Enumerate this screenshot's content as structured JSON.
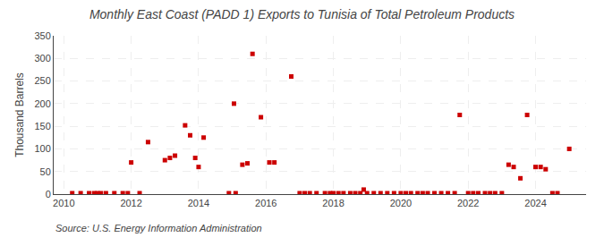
{
  "chart_data": {
    "type": "scatter",
    "title": "Monthly East Coast (PADD 1) Exports to Tunisia of Total Petroleum Products",
    "ylabel": "Thousand Barrels",
    "annotations": [
      "Source: U.S. Energy Information Administration"
    ],
    "color": "#cc0000",
    "marker": "square",
    "grid": true,
    "xlim": [
      2009.7,
      2025.5
    ],
    "xticks": [
      2010,
      2012,
      2014,
      2016,
      2018,
      2020,
      2022,
      2024
    ],
    "ylim": [
      0,
      350
    ],
    "yticks": [
      0,
      50,
      100,
      150,
      200,
      250,
      300,
      350
    ],
    "x": [
      2010.25,
      2010.5,
      2010.75,
      2010.9,
      2011.0,
      2011.1,
      2011.25,
      2011.5,
      2011.75,
      2011.9,
      2012.0,
      2012.25,
      2012.5,
      2013.0,
      2013.15,
      2013.3,
      2013.6,
      2013.75,
      2013.9,
      2014.0,
      2014.15,
      2014.9,
      2015.05,
      2015.1,
      2015.3,
      2015.45,
      2015.6,
      2015.85,
      2016.1,
      2016.25,
      2016.75,
      2017.0,
      2017.15,
      2017.3,
      2017.5,
      2017.75,
      2017.9,
      2018.0,
      2018.15,
      2018.3,
      2018.5,
      2018.65,
      2018.8,
      2018.9,
      2019.0,
      2019.2,
      2019.4,
      2019.6,
      2019.8,
      2020.0,
      2020.15,
      2020.3,
      2020.5,
      2020.65,
      2020.8,
      2021.0,
      2021.2,
      2021.4,
      2021.6,
      2021.75,
      2022.0,
      2022.15,
      2022.3,
      2022.5,
      2022.65,
      2022.8,
      2023.0,
      2023.2,
      2023.35,
      2023.55,
      2023.75,
      2024.0,
      2024.15,
      2024.3,
      2024.5,
      2024.65,
      2025.0
    ],
    "values": [
      2,
      2,
      2,
      2,
      2,
      2,
      2,
      2,
      2,
      2,
      70,
      2,
      115,
      75,
      80,
      85,
      152,
      130,
      80,
      60,
      125,
      2,
      200,
      2,
      65,
      68,
      310,
      170,
      70,
      70,
      260,
      2,
      2,
      2,
      2,
      2,
      2,
      2,
      2,
      2,
      2,
      2,
      2,
      10,
      2,
      2,
      2,
      2,
      2,
      2,
      2,
      2,
      2,
      2,
      2,
      2,
      2,
      2,
      2,
      175,
      2,
      2,
      2,
      2,
      2,
      2,
      2,
      65,
      60,
      35,
      175,
      60,
      60,
      55,
      2,
      2,
      100
    ]
  }
}
